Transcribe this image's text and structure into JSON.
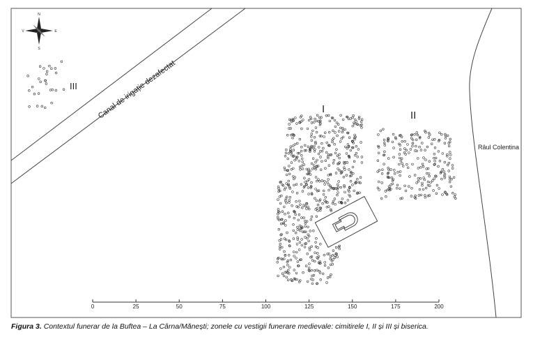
{
  "compass": {
    "north": "N",
    "east": "E",
    "south": "S",
    "west": "V"
  },
  "zones": {
    "cemetery_3": "III",
    "cemetery_1": "I",
    "cemetery_2": "II"
  },
  "canal_label": "Canal de irigație dezafectat",
  "river_label": "Râul Colentina",
  "scale_ticks": [
    0,
    25,
    50,
    75,
    100,
    125,
    150,
    175,
    200
  ],
  "caption": {
    "label": "Figura 3.",
    "text": "Contextul funerar de la Buftea – La Cârna/Mănești; zonele cu vestigii funerare medievale: cimitirele I, II și III și biserica."
  }
}
